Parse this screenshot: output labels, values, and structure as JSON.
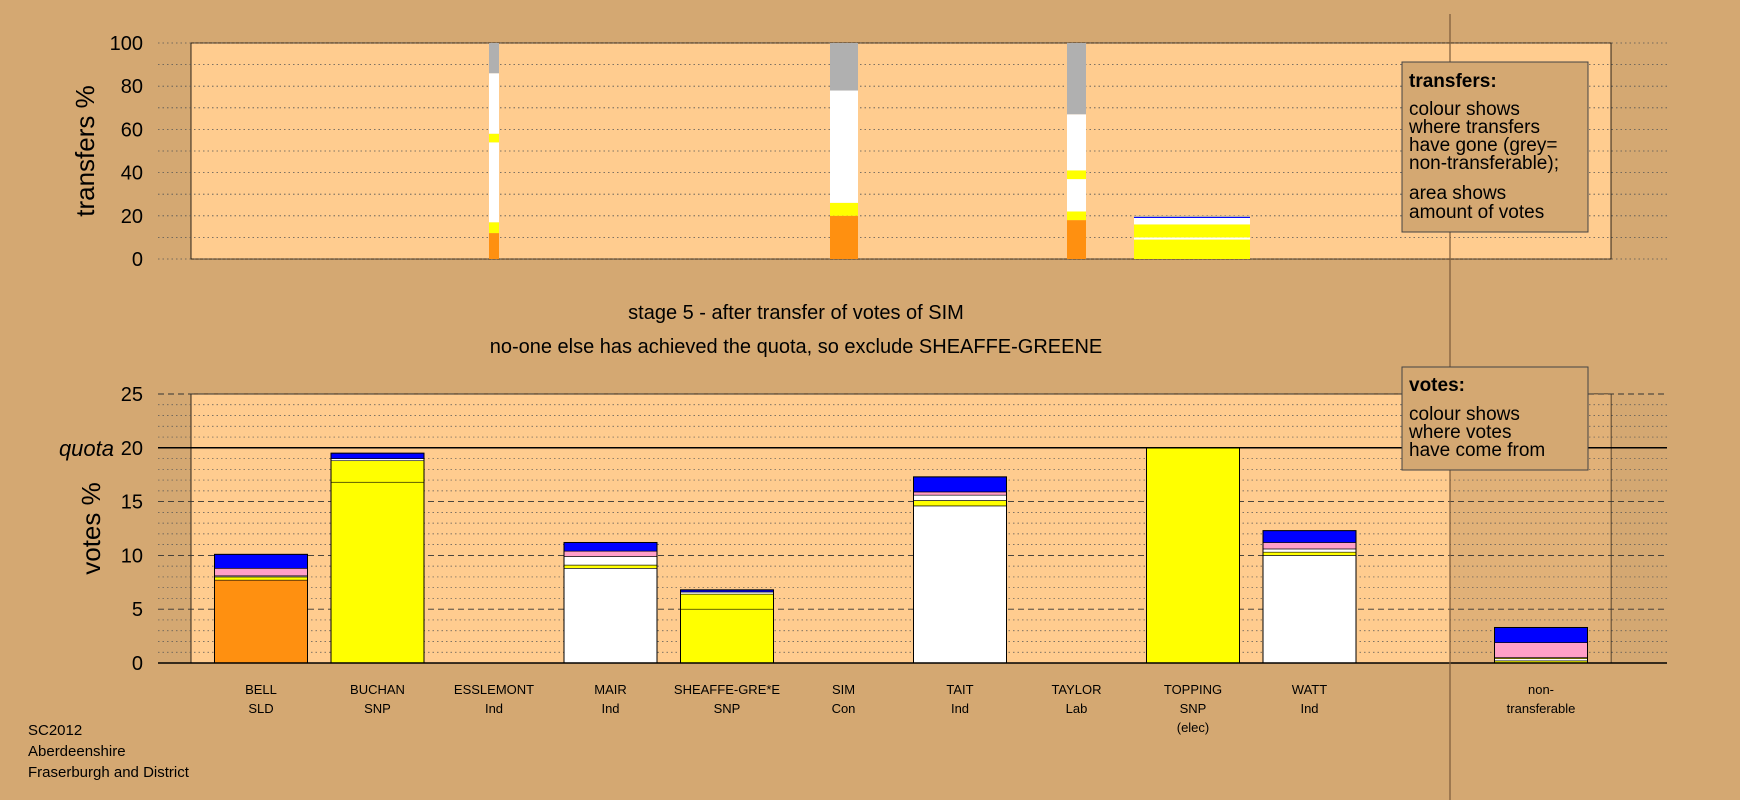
{
  "colors": {
    "background": "#d4a872",
    "plot_bg": "#ffcc8f",
    "nontransfer_bg": "#c99a66",
    "SLD": "#ff9010",
    "SNP": "#ffff00",
    "Ind": "#ffffff",
    "Con": "#0000ff",
    "Lab": "#ff9fc8",
    "nontransferable": "#b0b0b0"
  },
  "title": {
    "line1": "stage 5 - after transfer of votes of SIM",
    "line2": "no-one else has achieved the quota, so exclude SHEAFFE-GREENE"
  },
  "footer": {
    "line1": "SC2012",
    "line2": "Aberdeenshire",
    "line3": "Fraserburgh and District"
  },
  "legend_transfers": {
    "heading": "transfers:",
    "lines1": [
      "colour shows",
      "where transfers",
      "have gone (grey=",
      "non-transferable);"
    ],
    "lines2": [
      "area shows",
      "amount of votes"
    ]
  },
  "legend_votes": {
    "heading": "votes:",
    "lines": [
      "colour shows",
      "where votes",
      "have come from"
    ]
  },
  "chart_data": [
    {
      "type": "bar",
      "ylabel": "transfers %",
      "ylim": [
        0,
        100
      ],
      "yticks": [
        0,
        20,
        40,
        60,
        80,
        100
      ],
      "grid": true,
      "columns": [
        {
          "candidate": "ESSLEMONT",
          "segments": [
            {
              "party": "SLD",
              "from": 0,
              "to": 12
            },
            {
              "party": "SNP",
              "from": 12,
              "to": 17
            },
            {
              "party": "Ind",
              "from": 17,
              "to": 54
            },
            {
              "party": "SNP",
              "from": 54,
              "to": 58
            },
            {
              "party": "Ind",
              "from": 58,
              "to": 86
            },
            {
              "party": "nontransferable",
              "from": 86,
              "to": 100
            }
          ]
        },
        {
          "candidate": "SIM",
          "segments": [
            {
              "party": "SLD",
              "from": 0,
              "to": 20
            },
            {
              "party": "SNP",
              "from": 20,
              "to": 26
            },
            {
              "party": "Ind",
              "from": 26,
              "to": 78
            },
            {
              "party": "nontransferable",
              "from": 78,
              "to": 100
            }
          ]
        },
        {
          "candidate": "TAYLOR",
          "segments": [
            {
              "party": "SLD",
              "from": 0,
              "to": 18
            },
            {
              "party": "SNP",
              "from": 18,
              "to": 22
            },
            {
              "party": "Ind",
              "from": 22,
              "to": 37
            },
            {
              "party": "SNP",
              "from": 37,
              "to": 41
            },
            {
              "party": "Ind",
              "from": 41,
              "to": 67
            },
            {
              "party": "nontransferable",
              "from": 67,
              "to": 100
            }
          ]
        },
        {
          "candidate": "TOPPING",
          "segments": [
            {
              "party": "SNP",
              "from": 0,
              "to": 9
            },
            {
              "party": "Ind",
              "from": 9,
              "to": 10
            },
            {
              "party": "SNP",
              "from": 10,
              "to": 16
            },
            {
              "party": "Ind",
              "from": 16,
              "to": 19
            },
            {
              "party": "Con",
              "from": 19,
              "to": 19.5
            },
            {
              "party": "nontransferable",
              "from": 19.5,
              "to": 20
            }
          ]
        }
      ]
    },
    {
      "type": "bar",
      "ylabel": "votes %",
      "ylim": [
        0,
        25
      ],
      "yticks": [
        0,
        5,
        10,
        15,
        20,
        25
      ],
      "quota": 20,
      "quota_label": "quota",
      "grid": true,
      "categories": [
        {
          "name": "BELL",
          "party": "SLD",
          "extra": ""
        },
        {
          "name": "BUCHAN",
          "party": "SNP",
          "extra": ""
        },
        {
          "name": "ESSLEMONT",
          "party": "Ind",
          "extra": ""
        },
        {
          "name": "MAIR",
          "party": "Ind",
          "extra": ""
        },
        {
          "name": "SHEAFFE-GRE*E",
          "party": "SNP",
          "extra": ""
        },
        {
          "name": "SIM",
          "party": "Con",
          "extra": ""
        },
        {
          "name": "TAIT",
          "party": "Ind",
          "extra": ""
        },
        {
          "name": "TAYLOR",
          "party": "Lab",
          "extra": ""
        },
        {
          "name": "TOPPING",
          "party": "SNP",
          "extra": "(elec)"
        },
        {
          "name": "WATT",
          "party": "Ind",
          "extra": ""
        },
        {
          "name": "non-",
          "party": "transferable",
          "extra": ""
        }
      ],
      "bars": [
        {
          "index": 0,
          "segments": [
            {
              "party": "SLD",
              "from": 0,
              "to": 7.7
            },
            {
              "party": "SNP",
              "from": 7.7,
              "to": 8.0
            },
            {
              "party": "Ind",
              "from": 8.0,
              "to": 8.1
            },
            {
              "party": "Lab",
              "from": 8.1,
              "to": 8.8
            },
            {
              "party": "Con",
              "from": 8.8,
              "to": 10.1
            }
          ]
        },
        {
          "index": 1,
          "segments": [
            {
              "party": "SNP",
              "from": 0,
              "to": 16.8
            },
            {
              "party": "SNP",
              "from": 16.8,
              "to": 18.8
            },
            {
              "party": "Ind",
              "from": 18.8,
              "to": 19.0
            },
            {
              "party": "Con",
              "from": 19.0,
              "to": 19.5
            }
          ]
        },
        {
          "index": 3,
          "segments": [
            {
              "party": "Ind",
              "from": 0,
              "to": 8.8
            },
            {
              "party": "SNP",
              "from": 8.8,
              "to": 9.1
            },
            {
              "party": "Ind",
              "from": 9.1,
              "to": 9.9
            },
            {
              "party": "Lab",
              "from": 9.9,
              "to": 10.4
            },
            {
              "party": "Con",
              "from": 10.4,
              "to": 11.2
            }
          ]
        },
        {
          "index": 4,
          "segments": [
            {
              "party": "SNP",
              "from": 0,
              "to": 5.0
            },
            {
              "party": "SNP",
              "from": 5.0,
              "to": 6.4
            },
            {
              "party": "Ind",
              "from": 6.4,
              "to": 6.6
            },
            {
              "party": "Con",
              "from": 6.6,
              "to": 6.8
            }
          ]
        },
        {
          "index": 6,
          "segments": [
            {
              "party": "Ind",
              "from": 0,
              "to": 14.6
            },
            {
              "party": "SNP",
              "from": 14.6,
              "to": 15.1
            },
            {
              "party": "Ind",
              "from": 15.1,
              "to": 15.6
            },
            {
              "party": "Lab",
              "from": 15.6,
              "to": 15.9
            },
            {
              "party": "Con",
              "from": 15.9,
              "to": 17.3
            }
          ]
        },
        {
          "index": 8,
          "segments": [
            {
              "party": "SNP",
              "from": 0,
              "to": 20.0
            }
          ]
        },
        {
          "index": 9,
          "segments": [
            {
              "party": "Ind",
              "from": 0,
              "to": 10.0
            },
            {
              "party": "SNP",
              "from": 10.0,
              "to": 10.3
            },
            {
              "party": "Ind",
              "from": 10.3,
              "to": 10.6
            },
            {
              "party": "Lab",
              "from": 10.6,
              "to": 11.2
            },
            {
              "party": "Con",
              "from": 11.2,
              "to": 12.3
            }
          ]
        },
        {
          "index": 10,
          "segments": [
            {
              "party": "SNP",
              "from": 0,
              "to": 0.2
            },
            {
              "party": "Ind",
              "from": 0.2,
              "to": 0.4
            },
            {
              "party": "SNP",
              "from": 0.4,
              "to": 0.5
            },
            {
              "party": "Lab",
              "from": 0.5,
              "to": 1.9
            },
            {
              "party": "Con",
              "from": 1.9,
              "to": 3.3
            }
          ]
        }
      ]
    }
  ]
}
